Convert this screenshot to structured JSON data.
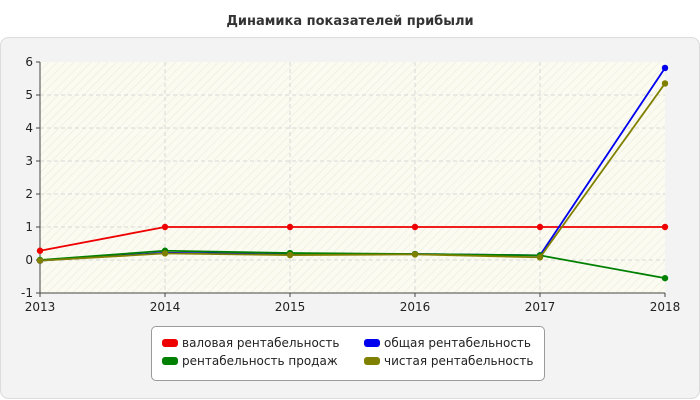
{
  "chart_data": {
    "type": "line",
    "title": "Динамика показателей прибыли",
    "x": [
      "2013",
      "2014",
      "2015",
      "2016",
      "2017",
      "2018"
    ],
    "ylim": [
      -1,
      6
    ],
    "yticks": [
      "-1",
      "0",
      "1",
      "2",
      "3",
      "4",
      "5",
      "6"
    ],
    "grid": true,
    "legend_position": "bottom-center",
    "series": [
      {
        "name": "валовая рентабельность",
        "color": "#ee0000",
        "values": [
          0.28,
          1.0,
          1.0,
          1.0,
          1.0,
          1.0
        ]
      },
      {
        "name": "общая рентабельность",
        "color": "#0000ee",
        "values": [
          -0.02,
          0.22,
          0.17,
          0.18,
          0.14,
          5.82
        ]
      },
      {
        "name": "рентабельность продаж",
        "color": "#008000",
        "values": [
          0.0,
          0.28,
          0.21,
          0.18,
          0.14,
          -0.55
        ]
      },
      {
        "name": "чистая рентабельность",
        "color": "#808000",
        "values": [
          -0.02,
          0.2,
          0.15,
          0.17,
          0.08,
          5.35
        ]
      }
    ]
  }
}
